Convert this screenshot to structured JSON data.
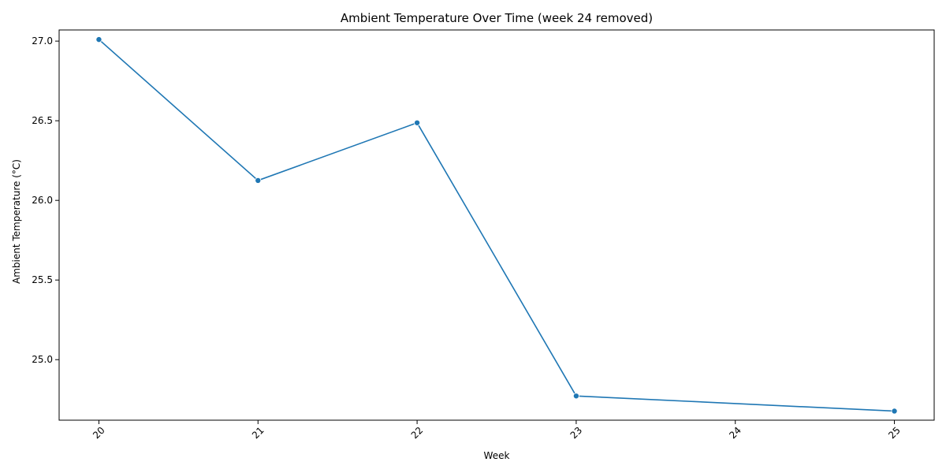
{
  "chart_data": {
    "type": "line",
    "title": "Ambient Temperature Over Time (week 24 removed)",
    "xlabel": "Week",
    "ylabel": "Ambient Temperature (°C)",
    "x_ticks": [
      "20",
      "21",
      "22",
      "23",
      "24",
      "25"
    ],
    "x_tick_values": [
      20,
      21,
      22,
      23,
      24,
      25
    ],
    "y_ticks": [
      "25.0",
      "25.5",
      "26.0",
      "26.5",
      "27.0"
    ],
    "y_tick_values": [
      25.0,
      25.5,
      26.0,
      26.5,
      27.0
    ],
    "xlim": [
      19.75,
      25.25
    ],
    "ylim": [
      24.62,
      27.07
    ],
    "grid": false,
    "series": [
      {
        "color": "#1f77b4",
        "marker": "circle",
        "x": [
          20,
          21,
          22,
          23,
          25
        ],
        "y": [
          27.01,
          26.125,
          26.487,
          24.772,
          24.677
        ]
      }
    ]
  }
}
